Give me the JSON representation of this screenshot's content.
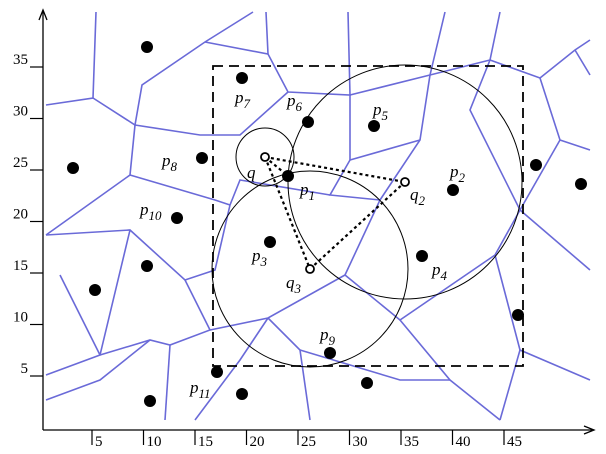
{
  "x_axis": {
    "ticks": [
      "5",
      "10",
      "15",
      "20",
      "25",
      "30",
      "35",
      "40",
      "45"
    ]
  },
  "y_axis": {
    "ticks": [
      "5",
      "10",
      "15",
      "20",
      "25",
      "30",
      "35"
    ]
  },
  "labels": [
    {
      "base": "p",
      "sub": "7"
    },
    {
      "base": "p",
      "sub": "6"
    },
    {
      "base": "p",
      "sub": "5"
    },
    {
      "base": "p",
      "sub": "8"
    },
    {
      "base": "q",
      "sub": ""
    },
    {
      "base": "p",
      "sub": "1"
    },
    {
      "base": "q",
      "sub": "2"
    },
    {
      "base": "p",
      "sub": "2"
    },
    {
      "base": "p",
      "sub": "10"
    },
    {
      "base": "p",
      "sub": "3"
    },
    {
      "base": "q",
      "sub": "3"
    },
    {
      "base": "p",
      "sub": "4"
    },
    {
      "base": "p",
      "sub": "9"
    },
    {
      "base": "p",
      "sub": "11"
    }
  ]
}
